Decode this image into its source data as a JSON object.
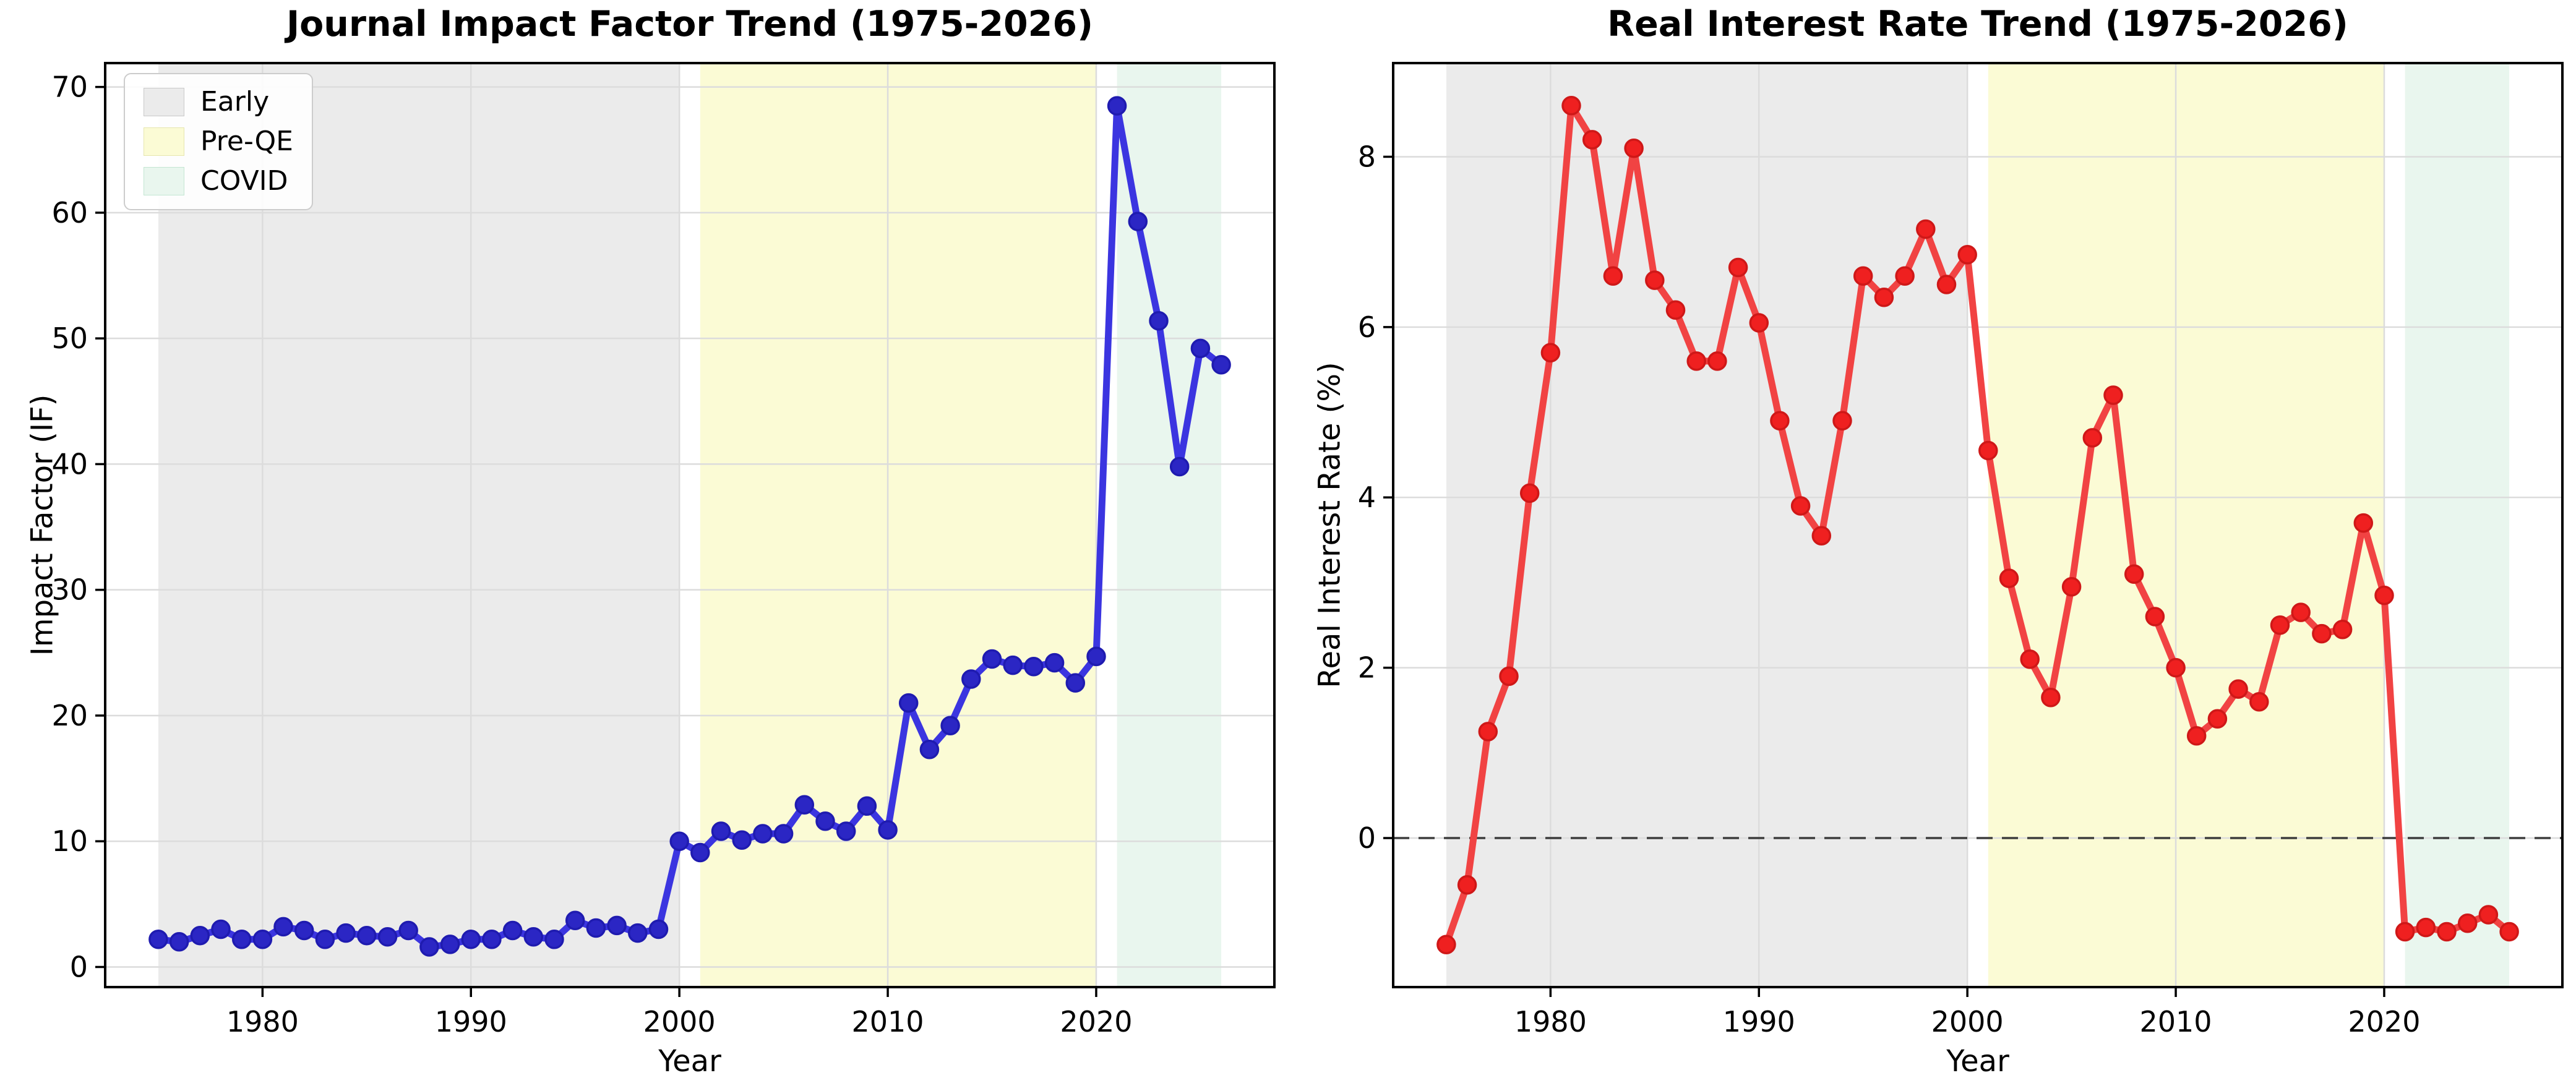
{
  "figure": {
    "background": "#ffffff"
  },
  "chart_data": [
    {
      "type": "line",
      "title": "Journal Impact Factor Trend (1975-2026)",
      "xlabel": "Year",
      "ylabel": "Impact Factor (IF)",
      "x": [
        1975,
        1976,
        1977,
        1978,
        1979,
        1980,
        1981,
        1982,
        1983,
        1984,
        1985,
        1986,
        1987,
        1988,
        1989,
        1990,
        1991,
        1992,
        1993,
        1994,
        1995,
        1996,
        1997,
        1998,
        1999,
        2000,
        2001,
        2002,
        2003,
        2004,
        2005,
        2006,
        2007,
        2008,
        2009,
        2010,
        2011,
        2012,
        2013,
        2014,
        2015,
        2016,
        2017,
        2018,
        2019,
        2020,
        2021,
        2022,
        2023,
        2024,
        2025,
        2026
      ],
      "values": [
        2.2,
        2.0,
        2.5,
        3.0,
        2.2,
        2.2,
        3.2,
        2.9,
        2.2,
        2.7,
        2.5,
        2.4,
        2.9,
        1.6,
        1.8,
        2.2,
        2.2,
        2.9,
        2.4,
        2.2,
        3.7,
        3.1,
        3.3,
        2.7,
        3.0,
        10.0,
        9.1,
        10.8,
        10.1,
        10.6,
        10.6,
        12.9,
        11.6,
        10.8,
        12.8,
        10.9,
        21.0,
        17.3,
        19.2,
        22.9,
        24.5,
        24.0,
        23.9,
        24.2,
        22.6,
        24.7,
        68.5,
        59.3,
        51.4,
        39.8,
        49.2,
        47.9
      ],
      "xlim": [
        1972.45,
        2028.55
      ],
      "ylim": [
        -1.6,
        71.9
      ],
      "xticks": [
        1980,
        1990,
        2000,
        2010,
        2020
      ],
      "yticks": [
        0,
        10,
        20,
        30,
        40,
        50,
        60,
        70
      ],
      "grid": true,
      "line_color": "#3b35e0",
      "marker_color": "#2b26c4",
      "marker_edge": "#1f1bb0",
      "zero_line": false,
      "legend_visible": true,
      "legend_position": "upper left",
      "regions": [
        {
          "label": "Early",
          "start": 1975,
          "end": 2000,
          "color": "#ebebeb",
          "border": "#c9c9c9"
        },
        {
          "label": "Pre-QE",
          "start": 2001,
          "end": 2020,
          "color": "#fbfbd5",
          "border": "#e6e6ae"
        },
        {
          "label": "COVID",
          "start": 2021,
          "end": 2026,
          "color": "#e9f6ee",
          "border": "#c4e6d2"
        }
      ]
    },
    {
      "type": "line",
      "title": "Real Interest Rate Trend (1975-2026)",
      "xlabel": "Year",
      "ylabel": "Real Interest Rate (%)",
      "x": [
        1975,
        1976,
        1977,
        1978,
        1979,
        1980,
        1981,
        1982,
        1983,
        1984,
        1985,
        1986,
        1987,
        1988,
        1989,
        1990,
        1991,
        1992,
        1993,
        1994,
        1995,
        1996,
        1997,
        1998,
        1999,
        2000,
        2001,
        2002,
        2003,
        2004,
        2005,
        2006,
        2007,
        2008,
        2009,
        2010,
        2011,
        2012,
        2013,
        2014,
        2015,
        2016,
        2017,
        2018,
        2019,
        2020,
        2021,
        2022,
        2023,
        2024,
        2025,
        2026
      ],
      "values": [
        -1.25,
        -0.55,
        1.25,
        1.9,
        4.05,
        5.7,
        8.6,
        8.2,
        6.6,
        8.1,
        6.55,
        6.2,
        5.6,
        5.6,
        6.7,
        6.05,
        4.9,
        3.9,
        3.55,
        4.9,
        6.6,
        6.35,
        6.6,
        7.15,
        6.5,
        6.85,
        4.55,
        3.05,
        2.1,
        1.65,
        2.95,
        4.7,
        5.2,
        3.1,
        2.6,
        2.0,
        1.2,
        1.4,
        1.75,
        1.6,
        2.5,
        2.65,
        2.4,
        2.45,
        3.7,
        2.85,
        -1.1,
        -1.05,
        -1.1,
        -1.0,
        -0.9,
        -1.1
      ],
      "xlim": [
        1972.45,
        2028.55
      ],
      "ylim": [
        -1.75,
        9.1
      ],
      "xticks": [
        1980,
        1990,
        2000,
        2010,
        2020
      ],
      "yticks": [
        0,
        2,
        4,
        6,
        8
      ],
      "grid": true,
      "line_color": "#f14343",
      "marker_color": "#ef2020",
      "marker_edge": "#cf1818",
      "zero_line": true,
      "zero_line_color": "#3d3d3d",
      "legend_visible": false,
      "regions": [
        {
          "label": "Early",
          "start": 1975,
          "end": 2000,
          "color": "#ebebeb",
          "border": "#c9c9c9"
        },
        {
          "label": "Pre-QE",
          "start": 2001,
          "end": 2020,
          "color": "#fbfbd5",
          "border": "#e6e6ae"
        },
        {
          "label": "COVID",
          "start": 2021,
          "end": 2026,
          "color": "#e9f6ee",
          "border": "#c4e6d2"
        }
      ]
    }
  ]
}
